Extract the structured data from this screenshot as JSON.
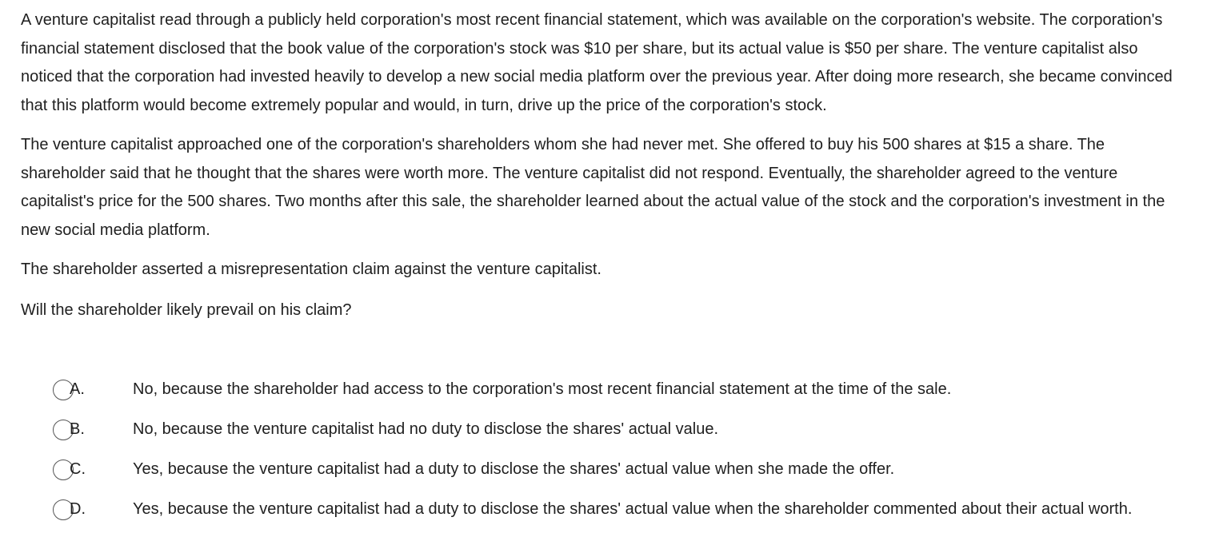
{
  "question": {
    "paragraphs": [
      "A venture capitalist read through a publicly held corporation's most recent financial statement, which was available on the corporation's website. The corporation's financial statement disclosed that the book value of the corporation's stock was $10 per share, but its actual value is $50 per share.  The venture capitalist also noticed that the corporation had invested heavily to develop a new social media platform over the previous year.  After doing more research, she became convinced that this platform would become extremely popular and would, in turn, drive up the price of the corporation's stock.",
      "The venture capitalist approached one of the corporation's shareholders whom she had never met.  She offered to buy his 500 shares at $15 a share.  The shareholder said that he thought that the shares were worth more.  The venture capitalist did not respond.  Eventually, the shareholder agreed to the venture capitalist's price for the 500 shares.  Two months after this sale, the shareholder learned about the actual value of the stock and the corporation's investment in the new social media platform.",
      "The shareholder asserted a misrepresentation claim against the venture capitalist.",
      "Will the shareholder likely prevail on his claim?"
    ]
  },
  "answers": [
    {
      "letter": "A.",
      "text": "No, because the shareholder had access to the corporation's most recent financial statement at the time of the sale."
    },
    {
      "letter": "B.",
      "text": "No, because the venture capitalist had no duty to disclose the shares' actual value."
    },
    {
      "letter": "C.",
      "text": "Yes, because the venture capitalist had a duty to disclose the shares' actual value when she made the offer."
    },
    {
      "letter": "D.",
      "text": "Yes, because the venture capitalist had a duty to disclose the shares' actual value when the shareholder commented about their actual worth."
    }
  ]
}
